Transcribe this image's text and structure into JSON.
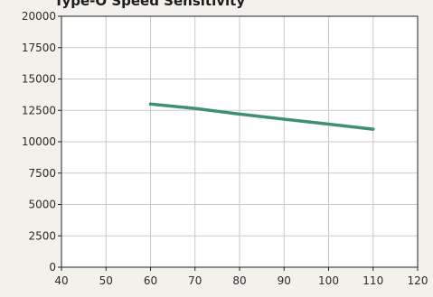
{
  "chart_data": {
    "type": "line",
    "title": "Type-O Speed Sensitivity",
    "xlabel": "",
    "ylabel": "",
    "xlim": [
      40,
      120
    ],
    "ylim": [
      0,
      20000
    ],
    "xticks": [
      40,
      50,
      60,
      70,
      80,
      90,
      100,
      110,
      120
    ],
    "yticks": [
      0,
      2500,
      5000,
      7500,
      10000,
      12500,
      15000,
      17500,
      20000
    ],
    "grid": true,
    "series": [
      {
        "x": [
          60,
          70,
          80,
          90,
          100,
          110
        ],
        "y": [
          13000,
          12650,
          12200,
          11800,
          11400,
          11000
        ],
        "color": "#3f8f72"
      }
    ]
  }
}
